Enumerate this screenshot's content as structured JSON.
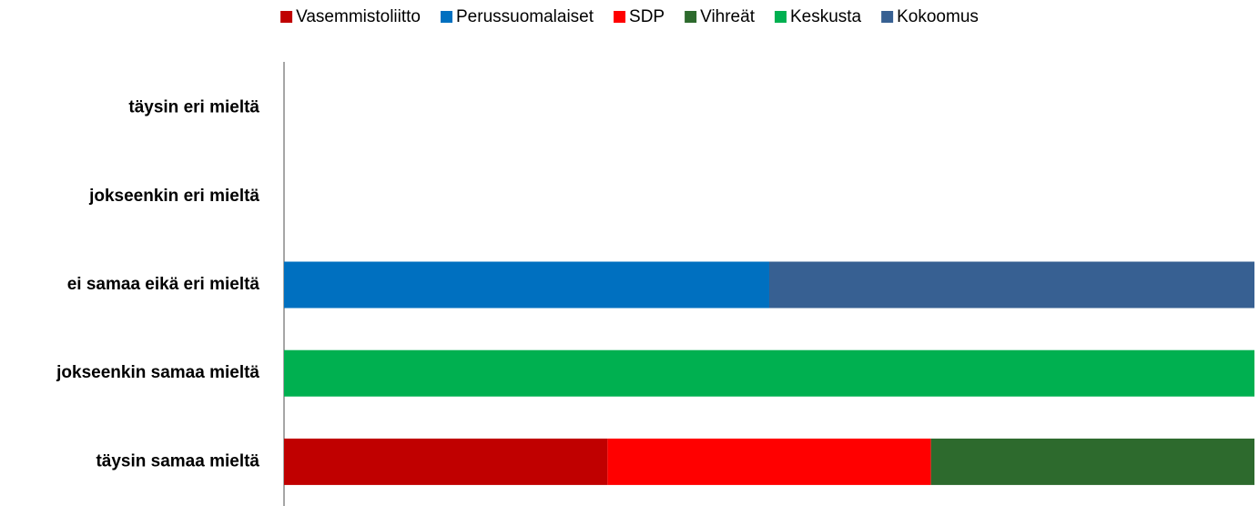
{
  "chart_data": {
    "type": "stacked_percent_barh",
    "categories": [
      "täysin eri mieltä",
      "jokseenkin eri mieltä",
      "ei samaa eikä eri mieltä",
      "jokseenkin samaa mieltä",
      "täysin samaa mieltä"
    ],
    "series": [
      {
        "name": "Vasemmistoliitto",
        "color": "#c00000",
        "values": [
          0,
          0,
          0,
          0,
          1
        ]
      },
      {
        "name": "Perussuomalaiset",
        "color": "#0070c0",
        "values": [
          0,
          0,
          1,
          0,
          0
        ]
      },
      {
        "name": "SDP",
        "color": "#ff0000",
        "values": [
          0,
          0,
          0,
          0,
          1
        ]
      },
      {
        "name": "Vihreät",
        "color": "#2d6a2d",
        "values": [
          0,
          0,
          0,
          0,
          1
        ]
      },
      {
        "name": "Keskusta",
        "color": "#00b050",
        "values": [
          0,
          0,
          0,
          1,
          0
        ]
      },
      {
        "name": "Kokoomus",
        "color": "#376092",
        "values": [
          0,
          0,
          1,
          0,
          0
        ]
      }
    ],
    "legend": "top"
  }
}
